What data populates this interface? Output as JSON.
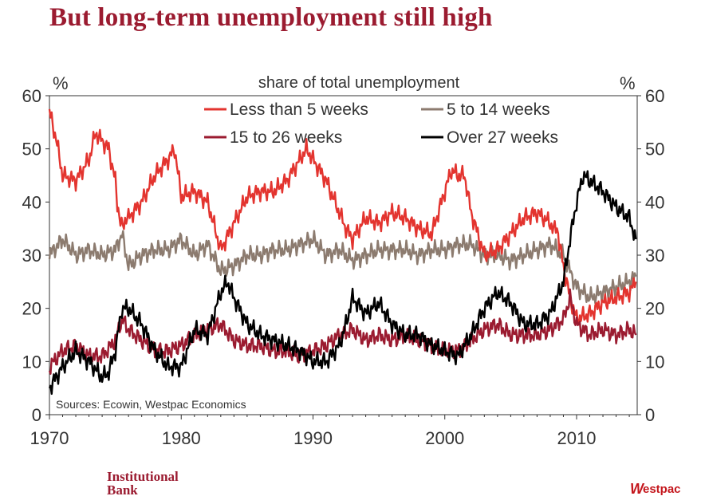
{
  "title": "But long-term unemployment still high",
  "footer": {
    "left_brand": "Institutional Bank",
    "right_brand_initial": "W",
    "right_brand_rest": "estpac"
  },
  "chart_data": {
    "type": "line",
    "subtitle": "share of total unemployment",
    "left_unit": "%",
    "right_unit": "%",
    "source_note": "Sources: Ecowin, Westpac Economics",
    "xlim": [
      1970,
      2014.6
    ],
    "ylim": [
      0,
      60
    ],
    "x_ticks": [
      1970,
      1980,
      1990,
      2000,
      2010
    ],
    "y_ticks": [
      0,
      10,
      20,
      30,
      40,
      50,
      60
    ],
    "series": [
      {
        "name": "Less than 5 weeks",
        "color": "#e3342f",
        "x": [
          1970,
          1970.5,
          1971,
          1972,
          1973,
          1973.5,
          1974.5,
          1975,
          1975.3,
          1976,
          1977,
          1978,
          1979,
          1979.5,
          1980,
          1981,
          1982,
          1983,
          1984,
          1985,
          1986,
          1987,
          1988,
          1989,
          1989.5,
          1990,
          1991,
          1992,
          1992.5,
          1993,
          1994,
          1995,
          1996,
          1997,
          1998,
          1999,
          2000,
          2000.5,
          2001,
          2001.5,
          2002,
          2002.5,
          2003,
          2004,
          2005,
          2006,
          2007,
          2008,
          2008.6,
          2009,
          2009.5,
          2010,
          2011,
          2012,
          2013,
          2014,
          2014.5
        ],
        "values": [
          57,
          52,
          45,
          44,
          48,
          53,
          50,
          44,
          36,
          37,
          40,
          45,
          48,
          50,
          41,
          42,
          40,
          31,
          36,
          41,
          42,
          42,
          44,
          48,
          50,
          48,
          44,
          38,
          35,
          33,
          37,
          36,
          38,
          37,
          35,
          34,
          42,
          46,
          45,
          45,
          38,
          34,
          30,
          31,
          34,
          37,
          38,
          36,
          34,
          28,
          22,
          18,
          19,
          21,
          22,
          23,
          25
        ]
      },
      {
        "name": "5 to 14 weeks",
        "color": "#8c7b6f",
        "x": [
          1970,
          1971,
          1972,
          1973,
          1974,
          1975,
          1975.5,
          1976,
          1977,
          1978,
          1979,
          1980,
          1981,
          1982,
          1983,
          1984,
          1985,
          1986,
          1987,
          1988,
          1989,
          1990,
          1991,
          1992,
          1993,
          1994,
          1995,
          1996,
          1997,
          1998,
          1999,
          2000,
          2001,
          2002,
          2003,
          2004,
          2005,
          2006,
          2007,
          2008,
          2009,
          2009.5,
          2010,
          2011,
          2012,
          2013,
          2014,
          2014.5
        ],
        "values": [
          30,
          33,
          30,
          31,
          30,
          31,
          34,
          28,
          30,
          31,
          31,
          33,
          30,
          32,
          27,
          28,
          30,
          30,
          31,
          31,
          32,
          33,
          30,
          31,
          29,
          30,
          31,
          31,
          31,
          30,
          31,
          31,
          32,
          32,
          30,
          30,
          29,
          30,
          31,
          32,
          30,
          27,
          24,
          22,
          23,
          24,
          25,
          26
        ]
      },
      {
        "name": "15 to 26 weeks",
        "color": "#9b1b30",
        "x": [
          1970,
          1971,
          1972,
          1973,
          1974,
          1975,
          1975.5,
          1976,
          1977,
          1978,
          1979,
          1980,
          1981,
          1982,
          1983,
          1984,
          1985,
          1986,
          1987,
          1988,
          1989,
          1990,
          1991,
          1992,
          1993,
          1994,
          1995,
          1996,
          1997,
          1998,
          1999,
          2000,
          2001,
          2002,
          2003,
          2004,
          2005,
          2006,
          2007,
          2008,
          2009,
          2009.5,
          2010,
          2011,
          2012,
          2013,
          2014,
          2014.5
        ],
        "values": [
          9,
          12,
          13,
          11,
          11,
          14,
          18,
          16,
          14,
          12,
          12,
          13,
          15,
          16,
          17,
          14,
          13,
          13,
          12,
          12,
          11,
          12,
          13,
          15,
          16,
          14,
          15,
          14,
          15,
          14,
          13,
          12,
          12,
          14,
          16,
          17,
          15,
          15,
          15,
          16,
          18,
          22,
          17,
          15,
          16,
          15,
          16,
          15
        ]
      },
      {
        "name": "Over 27 weeks",
        "color": "#000000",
        "x": [
          1970,
          1971,
          1972,
          1973,
          1974,
          1974.5,
          1975,
          1975.5,
          1976,
          1977,
          1978,
          1979,
          1980,
          1981,
          1982,
          1983,
          1983.5,
          1984,
          1985,
          1986,
          1987,
          1988,
          1989,
          1990,
          1991,
          1992,
          1992.5,
          1993,
          1994,
          1995,
          1996,
          1997,
          1998,
          1999,
          2000,
          2001,
          2002,
          2003,
          2004,
          2005,
          2006,
          2007,
          2008,
          2008.5,
          2009,
          2009.5,
          2010,
          2010.5,
          2011,
          2012,
          2013,
          2014,
          2014.5
        ],
        "values": [
          5,
          9,
          12,
          10,
          7,
          8,
          12,
          20,
          20,
          17,
          12,
          9,
          9,
          16,
          15,
          23,
          25,
          22,
          17,
          15,
          14,
          13,
          12,
          10,
          10,
          13,
          17,
          22,
          19,
          21,
          17,
          15,
          15,
          13,
          12,
          11,
          15,
          20,
          23,
          21,
          17,
          17,
          19,
          22,
          25,
          33,
          40,
          45,
          44,
          42,
          39,
          37,
          33
        ]
      }
    ]
  }
}
